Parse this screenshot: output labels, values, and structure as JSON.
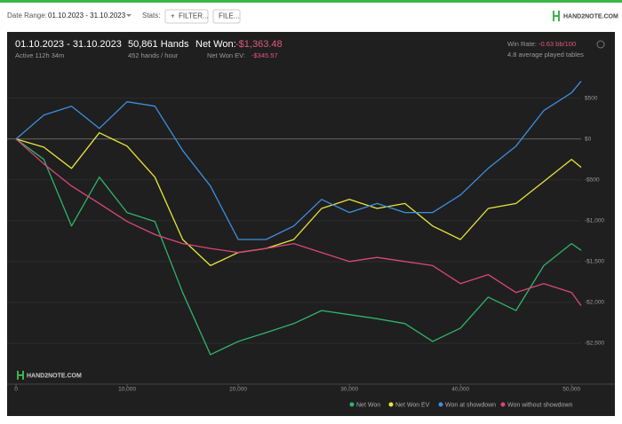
{
  "toolbar": {
    "date_range_label": "Date Range:",
    "date_range": "01.10.2023 - 31.10.2023",
    "stats_label": "Stats:",
    "filter_button": "FILTER...",
    "file_button": "FILE...",
    "brand": "HAND2NOTE.COM"
  },
  "stats": {
    "period": "01.10.2023 - 31.10.2023",
    "active": "Active 112h 34m",
    "hands": "50,861 Hands",
    "hands_per_hour": "452 hands / hour",
    "net_won_label": "Net Won:",
    "net_won": "-$1,363.48",
    "net_won_ev_label": "Net Won  EV:",
    "net_won_ev": "-$345.57",
    "win_rate_label": "Win Rate:",
    "win_rate": "-0.63 bb/100",
    "tables": "4.8 average played tables"
  },
  "watermark": "HAND2NOTE.COM",
  "chart_data": {
    "type": "line",
    "x": [
      0,
      2500,
      5000,
      7500,
      10000,
      12500,
      15000,
      17500,
      20000,
      22500,
      25000,
      27500,
      30000,
      32500,
      35000,
      37500,
      40000,
      42500,
      45000,
      47500,
      50000,
      50861
    ],
    "series": [
      {
        "name": "Net Won",
        "color": "#2fb46a",
        "values": [
          0,
          -250,
          -1065,
          -467,
          -900,
          -1010,
          -1880,
          -2640,
          -2478,
          -2370,
          -2260,
          -2100,
          -2150,
          -2200,
          -2260,
          -2478,
          -2315,
          -1935,
          -2100,
          -1550,
          -1280,
          -1363
        ]
      },
      {
        "name": "Net Won  EV",
        "color": "#e6e63c",
        "values": [
          0,
          -100,
          -360,
          76,
          -87,
          -467,
          -1230,
          -1550,
          -1390,
          -1340,
          -1230,
          -850,
          -740,
          -850,
          -790,
          -1065,
          -1230,
          -850,
          -790,
          -520,
          -250,
          -346
        ]
      },
      {
        "name": "Won at showdown",
        "color": "#3d8fe0",
        "values": [
          0,
          293,
          402,
          130,
          456,
          402,
          -141,
          -576,
          -1230,
          -1230,
          -1065,
          -740,
          -900,
          -790,
          -900,
          -900,
          -685,
          -360,
          -87,
          348,
          565,
          707
        ]
      },
      {
        "name": "Won without showdown",
        "color": "#d9467a",
        "values": [
          0,
          -304,
          -576,
          -790,
          -1010,
          -1170,
          -1280,
          -1340,
          -1390,
          -1340,
          -1280,
          -1390,
          -1500,
          -1450,
          -1500,
          -1550,
          -1770,
          -1660,
          -1880,
          -1770,
          -1880,
          -2040
        ]
      }
    ],
    "xlim": [
      0,
      50861
    ],
    "ylim": [
      -3000,
      800
    ],
    "xticks": [
      0,
      {
        "value": 10000,
        "label": "10,000"
      },
      {
        "value": 20000,
        "label": "20,000"
      },
      {
        "value": 30000,
        "label": "30,000"
      },
      {
        "value": 40000,
        "label": "40,000"
      },
      {
        "value": 50000,
        "label": "50,000"
      }
    ],
    "yticks": [
      {
        "value": 500,
        "label": "$500"
      },
      {
        "value": 0,
        "label": "$0"
      },
      {
        "value": -500,
        "label": "-$500"
      },
      {
        "value": -1000,
        "label": "-$1,000"
      },
      {
        "value": -1500,
        "label": "-$1,500"
      },
      {
        "value": -2000,
        "label": "-$2,000"
      },
      {
        "value": -2500,
        "label": "-$2,500"
      }
    ],
    "grid": true
  }
}
